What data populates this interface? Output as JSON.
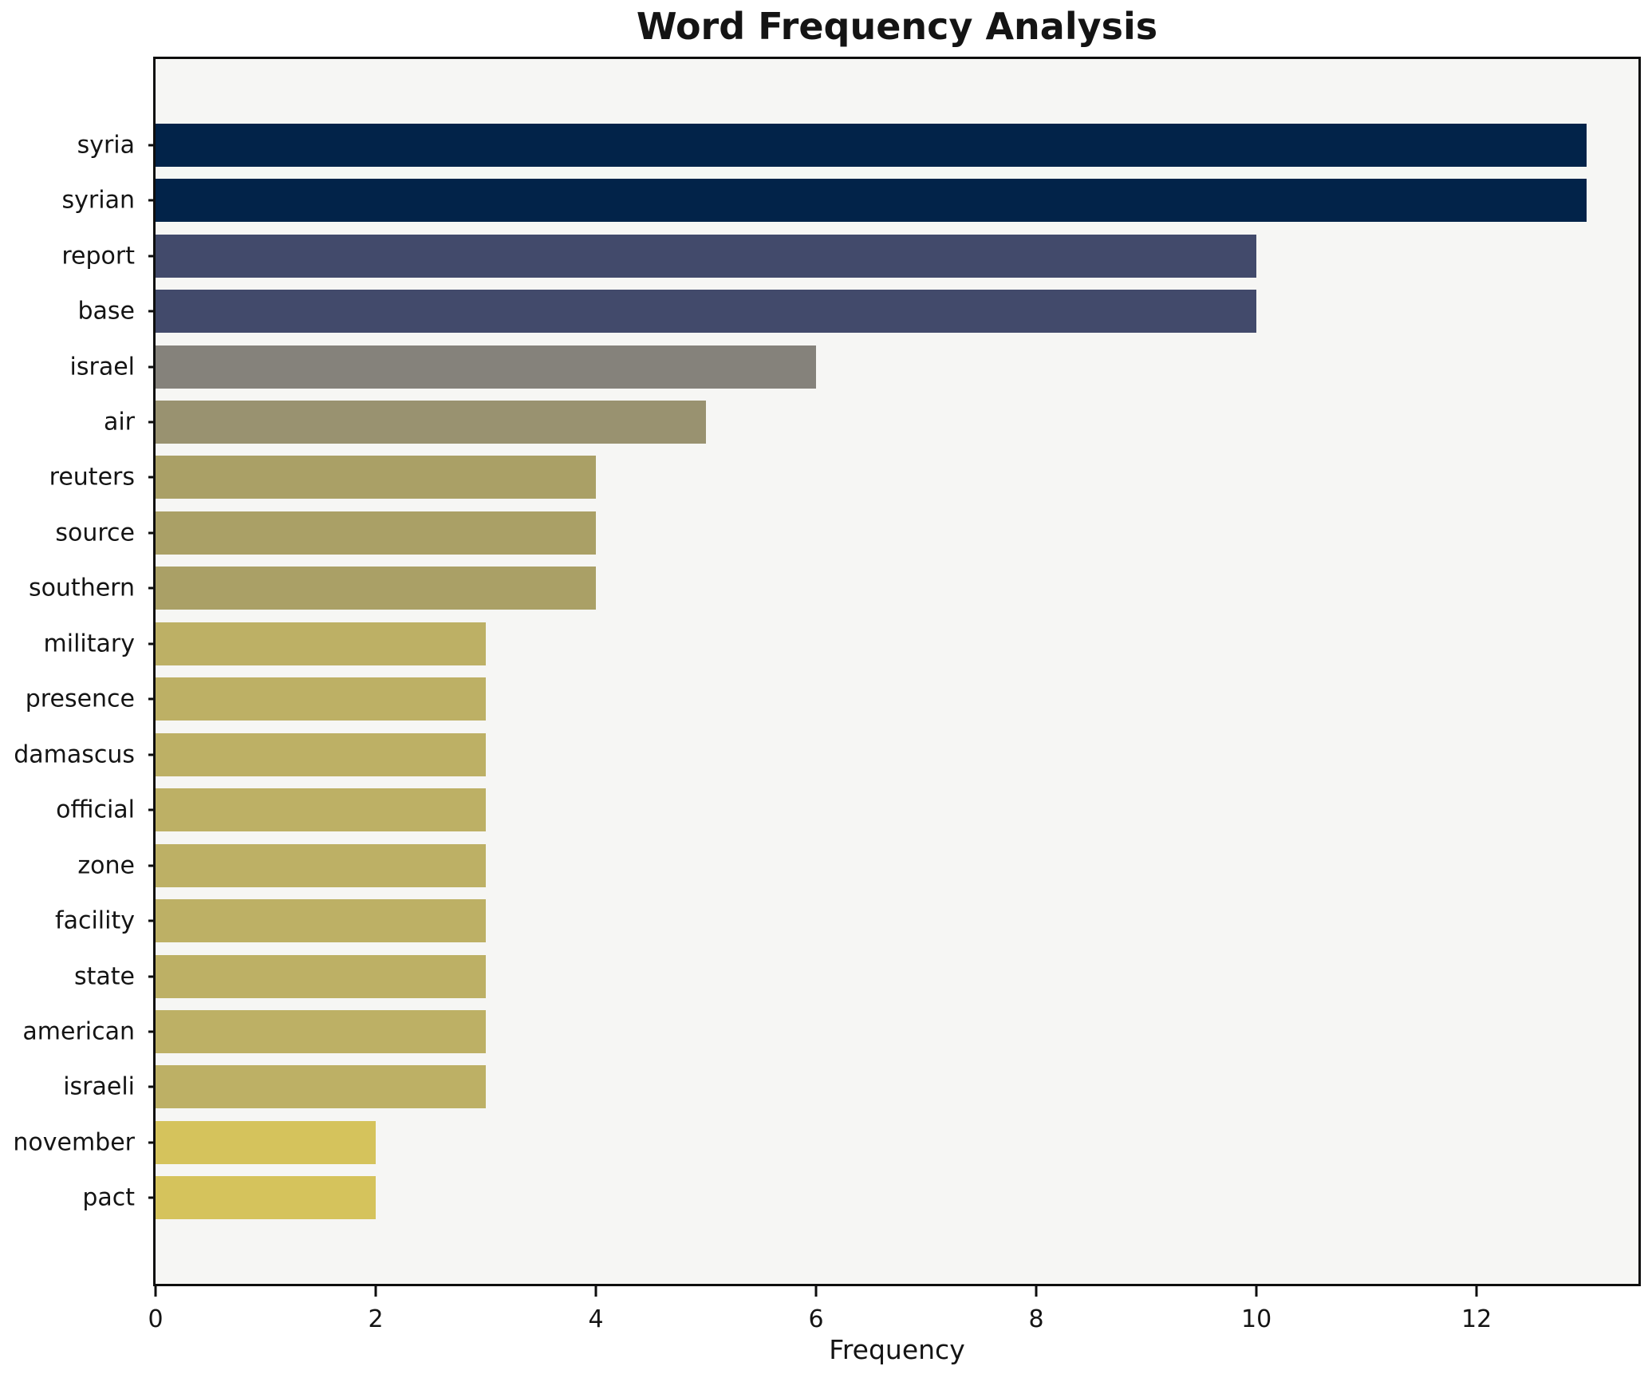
{
  "chart_data": {
    "type": "bar",
    "orientation": "horizontal",
    "title": "Word Frequency Analysis",
    "xlabel": "Frequency",
    "ylabel": "",
    "categories": [
      "syria",
      "syrian",
      "report",
      "base",
      "israel",
      "air",
      "reuters",
      "source",
      "southern",
      "military",
      "presence",
      "damascus",
      "official",
      "zone",
      "facility",
      "state",
      "american",
      "israeli",
      "november",
      "pact"
    ],
    "values": [
      13,
      13,
      10,
      10,
      6,
      5,
      4,
      4,
      4,
      3,
      3,
      3,
      3,
      3,
      3,
      3,
      3,
      3,
      2,
      2
    ],
    "bar_colors": [
      "#022349",
      "#022349",
      "#424a6b",
      "#424a6b",
      "#85827b",
      "#999270",
      "#aaa066",
      "#aaa066",
      "#aaa066",
      "#bdb065",
      "#bdb065",
      "#bdb065",
      "#bdb065",
      "#bdb065",
      "#bdb065",
      "#bdb065",
      "#bdb065",
      "#bdb065",
      "#d5c35c",
      "#d5c35c"
    ],
    "xlim": [
      0,
      13.47
    ],
    "xticks": [
      0,
      2,
      4,
      6,
      8,
      10,
      12
    ],
    "grid": false,
    "legend": "none",
    "plot_background": "#f6f6f4",
    "figure_background": "#ffffff",
    "spine_color": "#0e0e0e",
    "text_color": "#141414"
  }
}
